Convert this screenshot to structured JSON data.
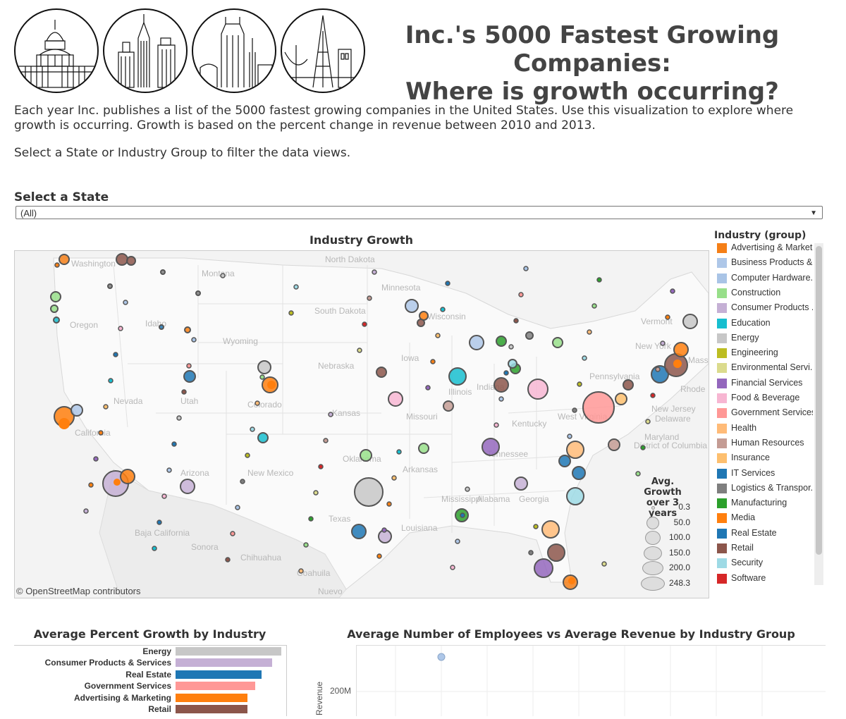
{
  "header": {
    "title_line1": "Inc.'s 5000 Fastest Growing Companies:",
    "title_line2": "Where is growth occurring?",
    "skyline_icons": [
      "capitol-skyline-icon",
      "skyscraper-skyline-icon",
      "tower-skyline-icon",
      "bridge-skyline-icon"
    ]
  },
  "intro": {
    "paragraph1": "Each year Inc. publishes a list of the 5000 fastest growing companies in the United States. Use this visualization to explore where growth is occurring. Growth is based on the percent change in revenue between 2010 and 2013.",
    "paragraph2": "Select a State or Industry Group to filter the data views."
  },
  "state_filter": {
    "label": "Select a State",
    "selected": "(All)"
  },
  "map": {
    "title": "Industry Growth",
    "attribution": "© OpenStreetMap contributors",
    "place_labels": [
      "Washington",
      "Montana",
      "North Dakota",
      "Minnesota",
      "Oregon",
      "Idaho",
      "South Dakota",
      "Wisconsin",
      "Wyoming",
      "Nebraska",
      "Iowa",
      "Nevada",
      "Utah",
      "Colorado",
      "Kansas",
      "Missouri",
      "Illinois",
      "Indiana",
      "California",
      "Arizona",
      "New Mexico",
      "Oklahoma",
      "Arkansas",
      "Tennessee",
      "Kentucky",
      "West Virginia",
      "Texas",
      "Louisiana",
      "Alabama",
      "Georgia",
      "Mississippi",
      "Vermont",
      "New York",
      "Massachusetts",
      "Pennsylvania",
      "Rhode",
      "New Jersey",
      "Delaware",
      "Maryland",
      "District of Columbia",
      "Baja California",
      "Sonora",
      "Chihuahua",
      "Coahuila",
      "Nuevo"
    ]
  },
  "color_legend": {
    "title": "Industry (group)",
    "items": [
      {
        "label": "Advertising & Market..",
        "color": "#f57f17"
      },
      {
        "label": "Business Products &..",
        "color": "#aec7e8"
      },
      {
        "label": "Computer Hardware..",
        "color": "#a9c4e6"
      },
      {
        "label": "Construction",
        "color": "#98df8a"
      },
      {
        "label": "Consumer Products ..",
        "color": "#c5b0d5"
      },
      {
        "label": "Education",
        "color": "#17becf"
      },
      {
        "label": "Energy",
        "color": "#c7c7c7"
      },
      {
        "label": "Engineering",
        "color": "#bcbd22"
      },
      {
        "label": "Environmental Servi..",
        "color": "#dbdb8d"
      },
      {
        "label": "Financial Services",
        "color": "#9467bd"
      },
      {
        "label": "Food & Beverage",
        "color": "#f7b6d2"
      },
      {
        "label": "Government Services",
        "color": "#ff9896"
      },
      {
        "label": "Health",
        "color": "#ffbb78"
      },
      {
        "label": "Human Resources",
        "color": "#c49c94"
      },
      {
        "label": "Insurance",
        "color": "#fdbf6f"
      },
      {
        "label": "IT Services",
        "color": "#1f77b4"
      },
      {
        "label": "Logistics & Transpor..",
        "color": "#7f7f7f"
      },
      {
        "label": "Manufacturing",
        "color": "#2ca02c"
      },
      {
        "label": "Media",
        "color": "#ff7f0e"
      },
      {
        "label": "Real Estate",
        "color": "#1f77b4"
      },
      {
        "label": "Retail",
        "color": "#8c564b"
      },
      {
        "label": "Security",
        "color": "#9edae5"
      },
      {
        "label": "Software",
        "color": "#d62728"
      }
    ]
  },
  "size_legend": {
    "title_line1": "Avg. Growth",
    "title_line2": "over 3 years",
    "values": [
      "0.3",
      "50.0",
      "100.0",
      "150.0",
      "200.0",
      "248.3"
    ]
  },
  "bar_chart": {
    "title": "Average Percent Growth by Industry",
    "rows": [
      {
        "category": "Energy",
        "value": 100,
        "color": "#c7c7c7"
      },
      {
        "category": "Consumer Products & Services",
        "value": 91,
        "color": "#c5b0d5"
      },
      {
        "category": "Real Estate",
        "value": 81,
        "color": "#1f77b4"
      },
      {
        "category": "Government Services",
        "value": 75,
        "color": "#ff9896"
      },
      {
        "category": "Advertising & Marketing",
        "value": 68,
        "color": "#ff7f0e"
      },
      {
        "category": "Retail",
        "value": 68,
        "color": "#8c564b"
      }
    ]
  },
  "scatter_chart": {
    "title": "Average Number of Employees vs Average Revenue by Industry Group",
    "y_tick": "200M",
    "y_label": "Revenue",
    "point_color": "#aec7e8"
  }
}
